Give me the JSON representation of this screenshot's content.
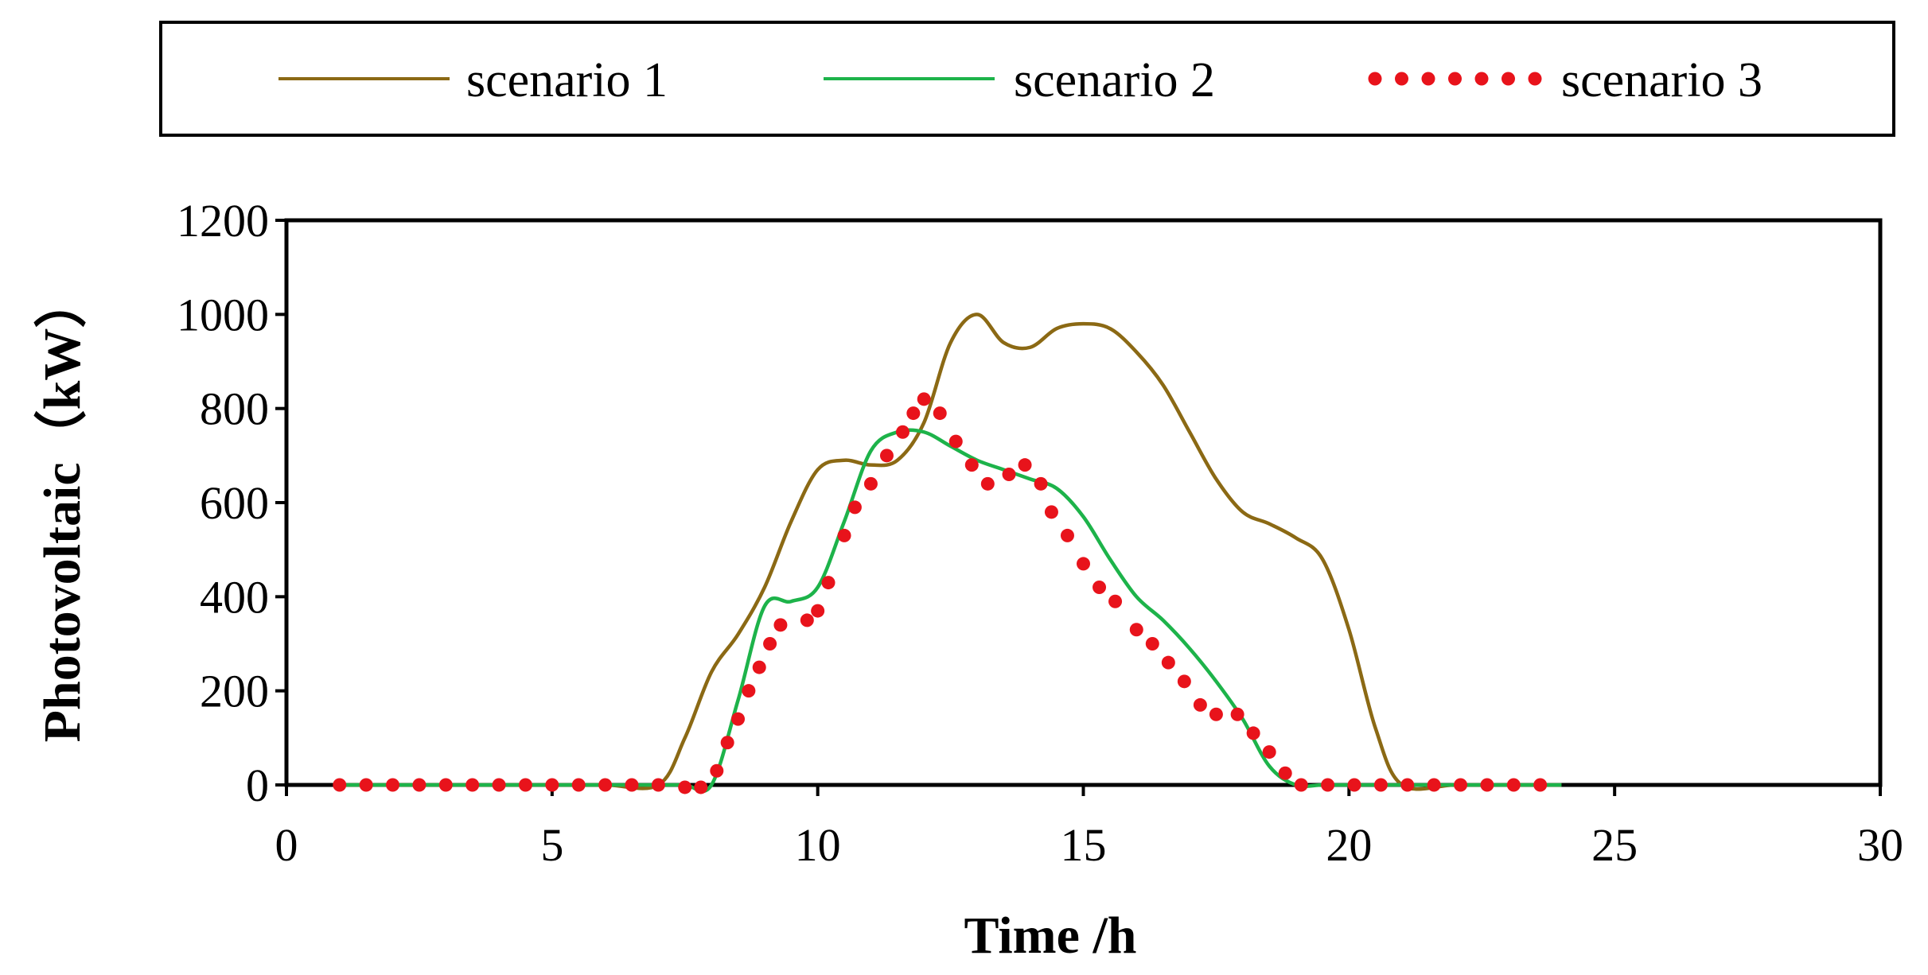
{
  "chart_data": {
    "type": "line",
    "xlabel": "Time /h",
    "ylabel": "Photovoltaic（kW）",
    "xlim": [
      0,
      30
    ],
    "ylim": [
      0,
      1200
    ],
    "xticks": [
      0,
      5,
      10,
      15,
      20,
      25,
      30
    ],
    "yticks": [
      0,
      200,
      400,
      600,
      800,
      1000,
      1200
    ],
    "grid": false,
    "legend_position": "top",
    "series": [
      {
        "name": "scenario 1",
        "style": "solid",
        "color": "#8B6914",
        "x": [
          1,
          2,
          3,
          4,
          5,
          6,
          7,
          7.5,
          8,
          8.5,
          9,
          9.5,
          10,
          10.5,
          11,
          11.5,
          12,
          12.5,
          13,
          13.5,
          14,
          14.5,
          15,
          15.5,
          16,
          16.5,
          17,
          17.5,
          18,
          18.5,
          19,
          19.5,
          20,
          20.5,
          21,
          22,
          23,
          24
        ],
        "y": [
          0,
          0,
          0,
          0,
          0,
          0,
          0,
          100,
          240,
          320,
          420,
          560,
          670,
          690,
          680,
          690,
          770,
          940,
          1000,
          940,
          930,
          970,
          980,
          970,
          920,
          850,
          750,
          650,
          580,
          555,
          525,
          480,
          330,
          120,
          0,
          0,
          0,
          0
        ]
      },
      {
        "name": "scenario 2",
        "style": "solid",
        "color": "#1DB34A",
        "x": [
          1,
          2,
          3,
          4,
          5,
          6,
          7,
          7.5,
          8,
          8.5,
          9,
          9.5,
          10,
          10.5,
          11,
          11.5,
          12,
          12.5,
          13,
          13.5,
          14,
          14.5,
          15,
          15.5,
          16,
          16.5,
          17,
          17.5,
          18,
          18.5,
          19,
          19.5,
          20,
          21,
          22,
          23,
          24
        ],
        "y": [
          0,
          0,
          0,
          0,
          0,
          0,
          0,
          0,
          0,
          180,
          380,
          390,
          420,
          560,
          710,
          750,
          750,
          720,
          690,
          670,
          650,
          630,
          570,
          480,
          400,
          350,
          290,
          220,
          140,
          40,
          0,
          0,
          0,
          0,
          0,
          0,
          0
        ]
      },
      {
        "name": "scenario 3",
        "style": "dotted",
        "color": "#E8131B",
        "x": [
          1,
          1.5,
          2,
          2.5,
          3,
          3.5,
          4,
          4.5,
          5,
          5.5,
          6,
          6.5,
          7,
          7.5,
          7.8,
          8.1,
          8.3,
          8.5,
          8.7,
          8.9,
          9.1,
          9.3,
          9.8,
          10,
          10.2,
          10.5,
          10.7,
          11,
          11.3,
          11.6,
          11.8,
          12,
          12.3,
          12.6,
          12.9,
          13.2,
          13.6,
          13.9,
          14.2,
          14.4,
          14.7,
          15,
          15.3,
          15.6,
          16,
          16.3,
          16.6,
          16.9,
          17.2,
          17.5,
          17.9,
          18.2,
          18.5,
          18.8,
          19.1,
          19.6,
          20.1,
          20.6,
          21.1,
          21.6,
          22.1,
          22.6,
          23.1,
          23.6
        ],
        "y": [
          0,
          0,
          0,
          0,
          0,
          0,
          0,
          0,
          0,
          0,
          0,
          0,
          0,
          -5,
          -5,
          30,
          90,
          140,
          200,
          250,
          300,
          340,
          350,
          370,
          430,
          530,
          590,
          640,
          700,
          750,
          790,
          820,
          790,
          730,
          680,
          640,
          660,
          680,
          640,
          580,
          530,
          470,
          420,
          390,
          330,
          300,
          260,
          220,
          170,
          150,
          150,
          110,
          70,
          25,
          0,
          0,
          0,
          0,
          0,
          0,
          0,
          0,
          0,
          0
        ]
      }
    ]
  }
}
